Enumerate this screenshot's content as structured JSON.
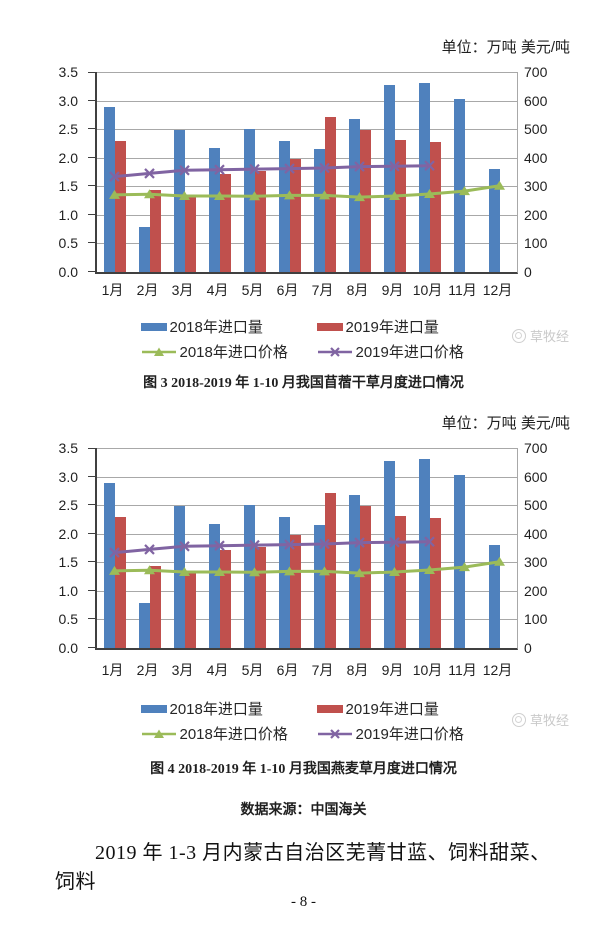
{
  "watermark": {
    "text": "草牧经"
  },
  "footer": {
    "datasource": "数据来源：中国海关",
    "body_text": "2019 年 1-3 月内蒙古自治区芜菁甘蓝、饲料甜菜、饲料",
    "page_number": "- 8 -"
  },
  "chart_data": [
    {
      "id": "figure-3",
      "type": "bar",
      "caption": "图 3  2018-2019 年 1-10 月我国苜蓿干草月度进口情况",
      "unit_label": "单位：万吨 美元/吨",
      "categories": [
        "1月",
        "2月",
        "3月",
        "4月",
        "5月",
        "6月",
        "7月",
        "8月",
        "9月",
        "10月",
        "11月",
        "12月"
      ],
      "left_axis": {
        "min": 0,
        "max": 3.5,
        "step": 0.5,
        "label_values": [
          "3.5",
          "3.0",
          "2.5",
          "2.0",
          "1.5",
          "1.0",
          "0.5",
          "0.0"
        ]
      },
      "right_axis": {
        "min": 0,
        "max": 700,
        "step": 100,
        "label_values": [
          "700",
          "600",
          "500",
          "400",
          "300",
          "200",
          "100",
          "0"
        ]
      },
      "grid": true,
      "legend_position": "bottom",
      "series": [
        {
          "name": "2018年进口量",
          "type": "bar",
          "axis": "left",
          "color": "#4F81BD",
          "values": [
            2.89,
            0.78,
            2.49,
            2.17,
            2.51,
            2.3,
            2.15,
            2.67,
            3.27,
            3.31,
            3.02,
            1.81
          ]
        },
        {
          "name": "2019年进口量",
          "type": "bar",
          "axis": "left",
          "color": "#C0504D",
          "values": [
            2.29,
            1.43,
            1.31,
            1.72,
            1.77,
            1.97,
            2.72,
            2.49,
            2.31,
            2.27,
            null,
            null
          ]
        },
        {
          "name": "2018年进口价格",
          "type": "line",
          "marker": "triangle",
          "axis": "right",
          "color": "#9BBB59",
          "values": [
            270,
            272,
            266,
            266,
            265,
            268,
            268,
            262,
            266,
            273,
            283,
            302
          ]
        },
        {
          "name": "2019年进口价格",
          "type": "line",
          "marker": "x",
          "axis": "right",
          "color": "#8064A2",
          "values": [
            334,
            345,
            356,
            358,
            360,
            362,
            364,
            369,
            370,
            372,
            null,
            null
          ]
        }
      ]
    },
    {
      "id": "figure-4",
      "type": "bar",
      "caption": "图 4  2018-2019 年 1-10 月我国燕麦草月度进口情况",
      "unit_label": "单位：万吨 美元/吨",
      "categories": [
        "1月",
        "2月",
        "3月",
        "4月",
        "5月",
        "6月",
        "7月",
        "8月",
        "9月",
        "10月",
        "11月",
        "12月"
      ],
      "left_axis": {
        "min": 0,
        "max": 3.5,
        "step": 0.5,
        "label_values": [
          "3.5",
          "3.0",
          "2.5",
          "2.0",
          "1.5",
          "1.0",
          "0.5",
          "0.0"
        ]
      },
      "right_axis": {
        "min": 0,
        "max": 700,
        "step": 100,
        "label_values": [
          "700",
          "600",
          "500",
          "400",
          "300",
          "200",
          "100",
          "0"
        ]
      },
      "grid": true,
      "legend_position": "bottom",
      "series": [
        {
          "name": "2018年进口量",
          "type": "bar",
          "axis": "left",
          "color": "#4F81BD",
          "values": [
            2.89,
            0.78,
            2.49,
            2.17,
            2.51,
            2.3,
            2.15,
            2.67,
            3.27,
            3.31,
            3.02,
            1.81
          ]
        },
        {
          "name": "2019年进口量",
          "type": "bar",
          "axis": "left",
          "color": "#C0504D",
          "values": [
            2.29,
            1.43,
            1.31,
            1.72,
            1.77,
            1.97,
            2.72,
            2.49,
            2.31,
            2.27,
            null,
            null
          ]
        },
        {
          "name": "2018年进口价格",
          "type": "line",
          "marker": "triangle",
          "axis": "right",
          "color": "#9BBB59",
          "values": [
            270,
            272,
            266,
            266,
            265,
            268,
            268,
            262,
            266,
            273,
            283,
            302
          ]
        },
        {
          "name": "2019年进口价格",
          "type": "line",
          "marker": "x",
          "axis": "right",
          "color": "#8064A2",
          "values": [
            334,
            345,
            356,
            358,
            360,
            362,
            364,
            369,
            370,
            372,
            null,
            null
          ]
        }
      ]
    }
  ]
}
